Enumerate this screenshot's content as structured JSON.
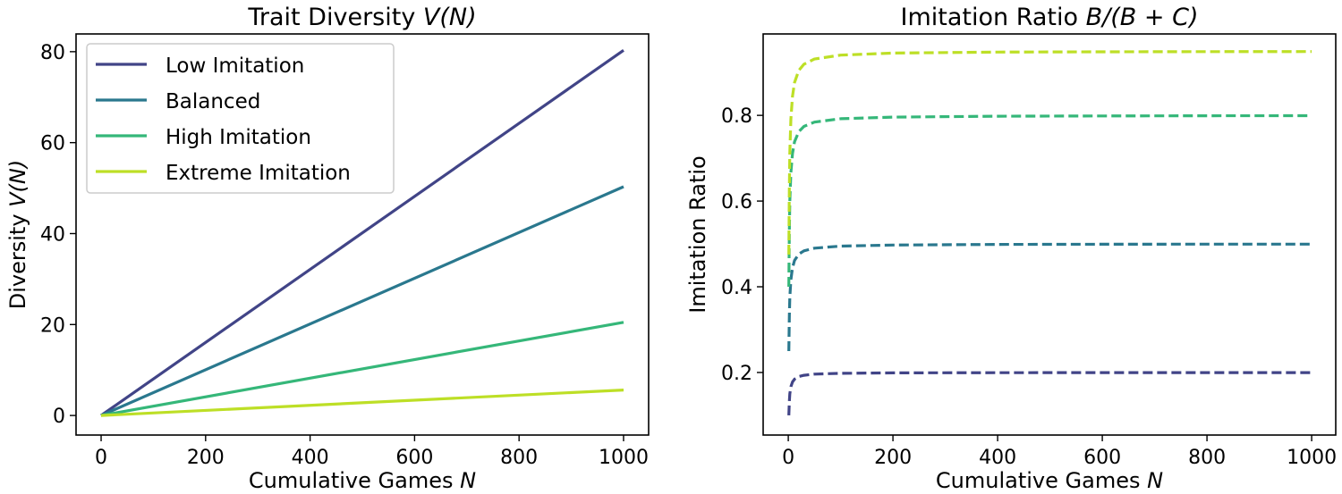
{
  "chart_data": [
    {
      "type": "line",
      "title": "Trait Diversity V(N)",
      "title_parts": {
        "text": "Trait Diversity ",
        "math": "V(N)"
      },
      "xlabel": "Cumulative Games N",
      "xlabel_parts": {
        "text": "Cumulative Games ",
        "math": "N"
      },
      "ylabel": "Diversity V(N)",
      "ylabel_parts": {
        "text": "Diversity ",
        "math": "V(N)"
      },
      "xlim": [
        -48,
        1048
      ],
      "ylim": [
        -4.3,
        83.9
      ],
      "xticks": [
        0,
        200,
        400,
        600,
        800,
        1000
      ],
      "yticks": [
        0,
        20,
        40,
        60,
        80
      ],
      "grid": false,
      "legend": "top-left",
      "line_style": "solid",
      "series": [
        {
          "name": "Low Imitation",
          "color": "#414487",
          "x": [
            0,
            1000
          ],
          "y": [
            0,
            80.3
          ]
        },
        {
          "name": "Balanced",
          "color": "#2a788e",
          "x": [
            0,
            1000
          ],
          "y": [
            0,
            50.3
          ]
        },
        {
          "name": "High Imitation",
          "color": "#35b779",
          "x": [
            0,
            1000
          ],
          "y": [
            0,
            20.5
          ]
        },
        {
          "name": "Extreme Imitation",
          "color": "#bddf26",
          "x": [
            0,
            1000
          ],
          "y": [
            0,
            5.6
          ]
        }
      ]
    },
    {
      "type": "line",
      "title": "Imitation Ratio B/(B+C)",
      "title_parts": {
        "text": "Imitation Ratio ",
        "math": "B/(B + C)"
      },
      "xlabel": "Cumulative Games N",
      "xlabel_parts": {
        "text": "Cumulative Games ",
        "math": "N"
      },
      "ylabel": "Imitation Ratio",
      "xlim": [
        -48,
        1046
      ],
      "ylim": [
        0.054,
        0.99
      ],
      "xticks": [
        0,
        200,
        400,
        600,
        800,
        1000
      ],
      "yticks": [
        0.2,
        0.4,
        0.6,
        0.8
      ],
      "grid": false,
      "line_style": "dashed",
      "x": [
        1,
        2,
        3,
        5,
        8,
        12,
        20,
        30,
        50,
        100,
        200,
        400,
        600,
        800,
        1000
      ],
      "series": [
        {
          "color": "#414487",
          "y": [
            0.1,
            0.1333,
            0.15,
            0.1667,
            0.1778,
            0.1846,
            0.1905,
            0.1935,
            0.1961,
            0.198,
            0.199,
            0.1995,
            0.1997,
            0.1998,
            0.1998
          ]
        },
        {
          "color": "#2a788e",
          "y": [
            0.25,
            0.3333,
            0.375,
            0.4167,
            0.4444,
            0.4615,
            0.4762,
            0.4839,
            0.4902,
            0.495,
            0.4975,
            0.4988,
            0.4992,
            0.4994,
            0.4995
          ]
        },
        {
          "color": "#35b779",
          "y": [
            0.4,
            0.5333,
            0.6,
            0.6667,
            0.7111,
            0.7385,
            0.7619,
            0.7742,
            0.7843,
            0.7921,
            0.796,
            0.798,
            0.7987,
            0.799,
            0.7992
          ]
        },
        {
          "color": "#bddf26",
          "y": [
            0.475,
            0.6333,
            0.7125,
            0.7917,
            0.8444,
            0.8769,
            0.9048,
            0.9194,
            0.9314,
            0.9406,
            0.9453,
            0.9476,
            0.9484,
            0.9488,
            0.949
          ]
        }
      ]
    }
  ]
}
